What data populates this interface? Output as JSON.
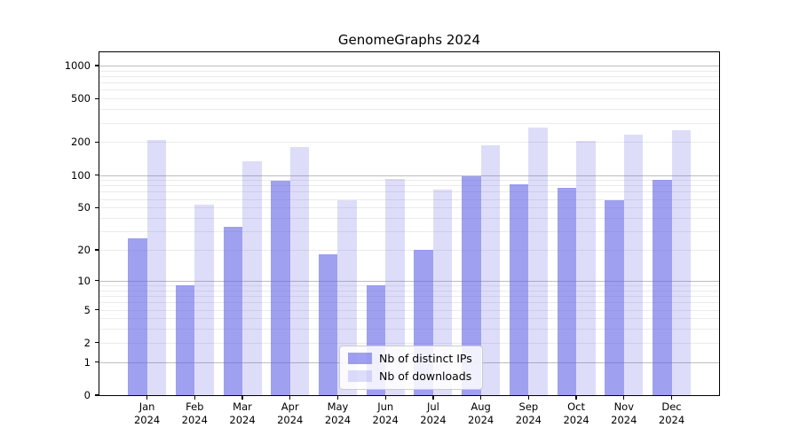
{
  "chart_data": {
    "type": "bar",
    "title": "GenomeGraphs 2024",
    "categories": [
      "Jan 2024",
      "Feb 2024",
      "Mar 2024",
      "Apr 2024",
      "May 2024",
      "Jun 2024",
      "Jul 2024",
      "Aug 2024",
      "Sep 2024",
      "Oct 2024",
      "Nov 2024",
      "Dec 2024"
    ],
    "series": [
      {
        "name": "Nb of distinct IPs",
        "color": "rgba(102,102,230,0.62)",
        "values": [
          26,
          9,
          33,
          88,
          18,
          9,
          20,
          98,
          82,
          76,
          58,
          90
        ]
      },
      {
        "name": "Nb of downloads",
        "color": "rgba(102,102,230,0.22)",
        "values": [
          210,
          53,
          134,
          181,
          58,
          92,
          74,
          186,
          272,
          206,
          232,
          258
        ]
      }
    ],
    "xlabel": "",
    "ylabel": "",
    "yscale": "log1p",
    "ylim": [
      0,
      1350
    ],
    "yticks": [
      0,
      1,
      2,
      5,
      10,
      20,
      50,
      100,
      200,
      500,
      1000
    ],
    "grid": true,
    "grid_major_ticks": [
      1,
      10,
      100,
      1000
    ],
    "grid_major_color": "#bdbdbd",
    "grid_minor_color": "#ebebeb",
    "legend_position": "lower center",
    "background_color": "#ffffff",
    "text_color": "#000000"
  }
}
